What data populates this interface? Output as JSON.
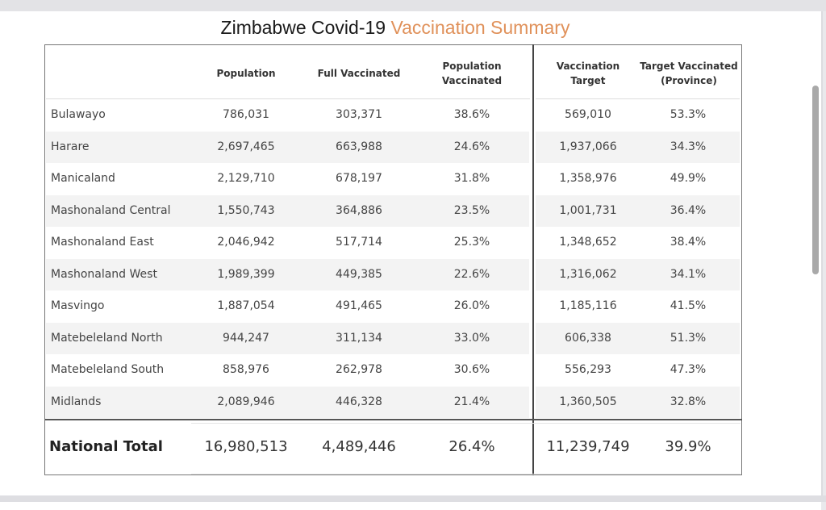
{
  "title": {
    "prefix": "Zimbabwe Covid-19",
    "accent": "Vaccination Summary",
    "accent_color": "#e0915a"
  },
  "columns": [
    {
      "line1": "Population",
      "line2": ""
    },
    {
      "line1": "Full Vaccinated",
      "line2": ""
    },
    {
      "line1": "Population",
      "line2": "Vaccinated"
    },
    {
      "line1": "Vaccination",
      "line2": "Target"
    },
    {
      "line1": "Target Vaccinated",
      "line2": "(Province)"
    }
  ],
  "rows": [
    {
      "province": "Bulawayo",
      "population": "786,031",
      "full_vaccinated": "303,371",
      "population_vaccinated": "38.6%",
      "vaccination_target": "569,010",
      "target_vaccinated": "53.3%"
    },
    {
      "province": "Harare",
      "population": "2,697,465",
      "full_vaccinated": "663,988",
      "population_vaccinated": "24.6%",
      "vaccination_target": "1,937,066",
      "target_vaccinated": "34.3%"
    },
    {
      "province": "Manicaland",
      "population": "2,129,710",
      "full_vaccinated": "678,197",
      "population_vaccinated": "31.8%",
      "vaccination_target": "1,358,976",
      "target_vaccinated": "49.9%"
    },
    {
      "province": "Mashonaland Central",
      "population": "1,550,743",
      "full_vaccinated": "364,886",
      "population_vaccinated": "23.5%",
      "vaccination_target": "1,001,731",
      "target_vaccinated": "36.4%"
    },
    {
      "province": "Mashonaland East",
      "population": "2,046,942",
      "full_vaccinated": "517,714",
      "population_vaccinated": "25.3%",
      "vaccination_target": "1,348,652",
      "target_vaccinated": "38.4%"
    },
    {
      "province": "Mashonaland West",
      "population": "1,989,399",
      "full_vaccinated": "449,385",
      "population_vaccinated": "22.6%",
      "vaccination_target": "1,316,062",
      "target_vaccinated": "34.1%"
    },
    {
      "province": "Masvingo",
      "population": "1,887,054",
      "full_vaccinated": "491,465",
      "population_vaccinated": "26.0%",
      "vaccination_target": "1,185,116",
      "target_vaccinated": "41.5%"
    },
    {
      "province": "Matebeleland North",
      "population": "944,247",
      "full_vaccinated": "311,134",
      "population_vaccinated": "33.0%",
      "vaccination_target": "606,338",
      "target_vaccinated": "51.3%"
    },
    {
      "province": "Matebeleland South",
      "population": "858,976",
      "full_vaccinated": "262,978",
      "population_vaccinated": "30.6%",
      "vaccination_target": "556,293",
      "target_vaccinated": "47.3%"
    },
    {
      "province": "Midlands",
      "population": "2,089,946",
      "full_vaccinated": "446,328",
      "population_vaccinated": "21.4%",
      "vaccination_target": "1,360,505",
      "target_vaccinated": "32.8%"
    }
  ],
  "total": {
    "label": "National Total",
    "population": "16,980,513",
    "full_vaccinated": "4,489,446",
    "population_vaccinated": "26.4%",
    "vaccination_target": "11,239,749",
    "target_vaccinated": "39.9%"
  }
}
